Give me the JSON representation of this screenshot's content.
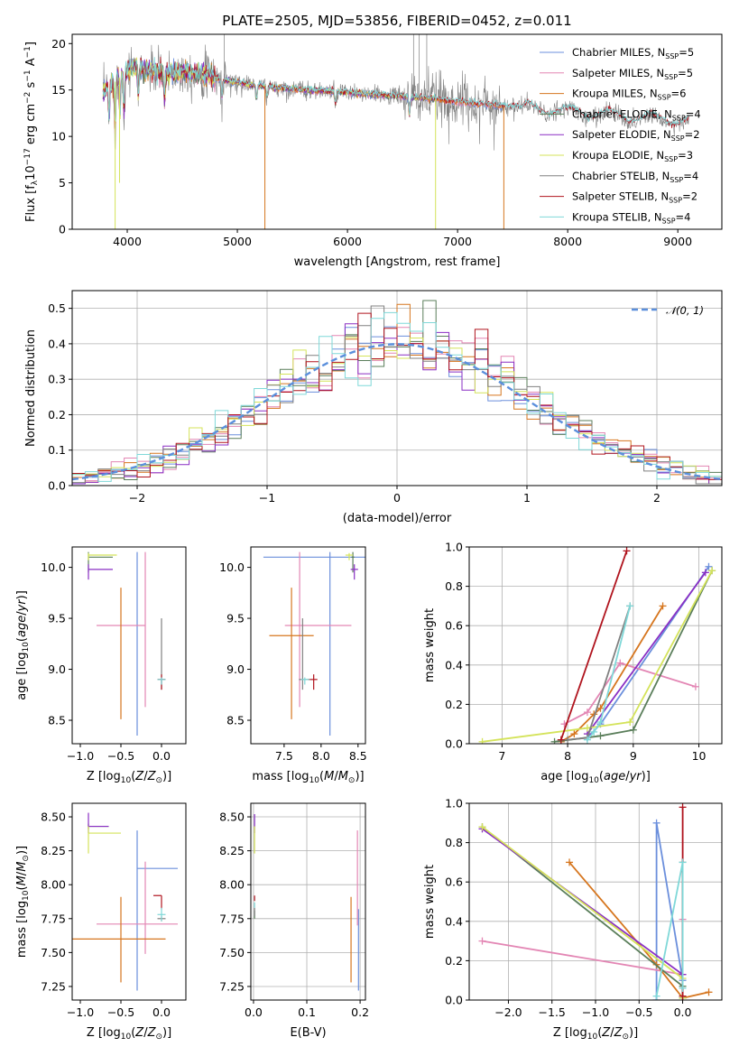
{
  "title": "PLATE=2505, MJD=53856, FIBERID=0452, z=0.011",
  "colors": {
    "Chabrier MILES": "#6b8fdc",
    "Salpeter MILES": "#e386b4",
    "Kroupa MILES": "#d6761f",
    "Chabrier ELODIE": "#5a7e5a",
    "Salpeter ELODIE": "#8a2fc4",
    "Kroupa ELODIE": "#d4e35a",
    "Chabrier STELIB": "#808080",
    "Salpeter STELIB": "#b0141e",
    "Kroupa STELIB": "#7fd8d8"
  },
  "chart_data": [
    {
      "id": "spectrum",
      "type": "line",
      "title": "PLATE=2505, MJD=53856, FIBERID=0452, z=0.011",
      "xlabel": "wavelength [Angstrom, rest frame]",
      "ylabel": "Flux [f_λ 10^-17 erg cm^-2 s^-1 A^-1]",
      "xlim": [
        3500,
        9400
      ],
      "ylim": [
        0,
        21
      ],
      "xticks": [
        4000,
        5000,
        6000,
        7000,
        8000,
        9000
      ],
      "yticks": [
        0,
        5,
        10,
        15,
        20
      ],
      "legend_position": "upper right",
      "legend": [
        "Chabrier MILES, N_SSP=5",
        "Salpeter MILES, N_SSP=5",
        "Kroupa MILES, N_SSP=6",
        "Chabrier ELODIE, N_SSP=4",
        "Salpeter ELODIE, N_SSP=2",
        "Kroupa ELODIE, N_SSP=3",
        "Chabrier STELIB, N_SSP=4",
        "Salpeter STELIB, N_SSP=2",
        "Kroupa STELIB, N_SSP=4"
      ],
      "continuum": {
        "x": [
          3780,
          3850,
          3950,
          4050,
          4150,
          4300,
          4500,
          4700,
          4900,
          5100,
          5300,
          5600,
          5900,
          6200,
          6500,
          6800,
          7100,
          7400,
          7700,
          8000,
          8300,
          8600,
          8900,
          9100
        ],
        "y": [
          14.5,
          15.5,
          16.5,
          17.5,
          17.2,
          16.8,
          17.0,
          16.6,
          16.0,
          15.6,
          15.3,
          15.0,
          14.8,
          14.5,
          14.3,
          14.0,
          13.6,
          13.3,
          13.0,
          12.6,
          12.4,
          12.0,
          11.8,
          11.5
        ]
      }
    },
    {
      "id": "residuals",
      "type": "histogram",
      "xlabel": "(data-model)/error",
      "ylabel": "Normed distribution",
      "xlim": [
        -2.5,
        2.5
      ],
      "ylim": [
        0,
        0.55
      ],
      "xticks": [
        -2,
        -1,
        0,
        1,
        2
      ],
      "yticks": [
        0.0,
        0.1,
        0.2,
        0.3,
        0.4,
        0.5
      ],
      "grid": true,
      "legend": [
        "𝒩(0, 1)"
      ],
      "legend_position": "upper right",
      "bin_width": 0.1
    },
    {
      "id": "age-vs-Z",
      "type": "errorbar",
      "xlabel": "Z [log10(Z/Z⊙)]",
      "ylabel": "age  [log10(age/yr)]",
      "xlim": [
        -1.1,
        0.3
      ],
      "ylim": [
        8.27,
        10.2
      ],
      "xticks": [
        -1.0,
        -0.5,
        0.0
      ],
      "yticks": [
        8.5,
        9.0,
        9.5,
        10.0
      ],
      "points": [
        {
          "model": "Chabrier MILES",
          "x": -0.3,
          "xerr": [
            0.0,
            0.0
          ],
          "y": 10.1,
          "yerr": [
            1.75,
            0.05
          ]
        },
        {
          "model": "Salpeter MILES",
          "x": -0.2,
          "xerr": [
            0.6,
            0.0
          ],
          "y": 9.43,
          "yerr": [
            0.8,
            0.72
          ]
        },
        {
          "model": "Kroupa MILES",
          "x": -0.5,
          "xerr": [
            0.0,
            0.0
          ],
          "y": 9.33,
          "yerr": [
            0.82,
            0.47
          ]
        },
        {
          "model": "Chabrier ELODIE",
          "x": -0.9,
          "xerr": [
            0.0,
            0.3
          ],
          "y": 10.1,
          "yerr": [
            0.15,
            0.05
          ]
        },
        {
          "model": "Salpeter ELODIE",
          "x": -0.9,
          "xerr": [
            0.0,
            0.3
          ],
          "y": 9.98,
          "yerr": [
            0.1,
            0.05
          ]
        },
        {
          "model": "Kroupa ELODIE",
          "x": -0.9,
          "xerr": [
            0.0,
            0.35
          ],
          "y": 10.12,
          "yerr": [
            0.05,
            0.02
          ]
        },
        {
          "model": "Chabrier STELIB",
          "x": 0.0,
          "xerr": [
            0.05,
            0.05
          ],
          "y": 8.9,
          "yerr": [
            0.1,
            0.6
          ]
        },
        {
          "model": "Salpeter STELIB",
          "x": 0.0,
          "xerr": [
            0.05,
            0.05
          ],
          "y": 8.9,
          "yerr": [
            0.1,
            0.05
          ]
        },
        {
          "model": "Kroupa STELIB",
          "x": 0.0,
          "xerr": [
            0.05,
            0.05
          ],
          "y": 8.9,
          "yerr": [
            0.05,
            0.02
          ]
        }
      ]
    },
    {
      "id": "age-vs-mass",
      "type": "errorbar",
      "xlabel": "mass [log10(M/M⊙)]",
      "ylabel": "",
      "xlim": [
        7.05,
        8.6
      ],
      "ylim": [
        8.27,
        10.2
      ],
      "xticks": [
        7.5,
        8.0,
        8.5
      ],
      "yticks": [
        8.5,
        9.0,
        9.5,
        10.0
      ],
      "points": [
        {
          "model": "Chabrier MILES",
          "x": 8.12,
          "xerr": [
            0.9,
            0.8
          ],
          "y": 10.1,
          "yerr": [
            1.75,
            0.05
          ]
        },
        {
          "model": "Salpeter MILES",
          "x": 7.71,
          "xerr": [
            0.2,
            0.7
          ],
          "y": 9.43,
          "yerr": [
            0.8,
            0.72
          ]
        },
        {
          "model": "Kroupa MILES",
          "x": 7.6,
          "xerr": [
            0.3,
            0.3
          ],
          "y": 9.33,
          "yerr": [
            0.82,
            0.47
          ]
        },
        {
          "model": "Chabrier ELODIE",
          "x": 8.43,
          "xerr": [
            0.02,
            0.02
          ],
          "y": 10.1,
          "yerr": [
            0.15,
            0.05
          ]
        },
        {
          "model": "Salpeter ELODIE",
          "x": 8.45,
          "xerr": [
            0.05,
            0.05
          ],
          "y": 9.98,
          "yerr": [
            0.1,
            0.05
          ]
        },
        {
          "model": "Kroupa ELODIE",
          "x": 8.38,
          "xerr": [
            0.05,
            0.05
          ],
          "y": 10.12,
          "yerr": [
            0.05,
            0.02
          ]
        },
        {
          "model": "Chabrier STELIB",
          "x": 7.75,
          "xerr": [
            0.05,
            0.1
          ],
          "y": 8.9,
          "yerr": [
            0.1,
            0.6
          ]
        },
        {
          "model": "Salpeter STELIB",
          "x": 7.9,
          "xerr": [
            0.05,
            0.05
          ],
          "y": 8.9,
          "yerr": [
            0.1,
            0.05
          ]
        },
        {
          "model": "Kroupa STELIB",
          "x": 7.78,
          "xerr": [
            0.05,
            0.05
          ],
          "y": 8.9,
          "yerr": [
            0.05,
            0.02
          ]
        }
      ]
    },
    {
      "id": "weight-vs-age",
      "type": "line",
      "xlabel": "age  [log10(age/yr)]",
      "ylabel": "mass weight",
      "xlim": [
        6.5,
        10.35
      ],
      "ylim": [
        0.0,
        1.0
      ],
      "xticks": [
        7,
        8,
        9,
        10
      ],
      "yticks": [
        0.0,
        0.2,
        0.4,
        0.6,
        0.8,
        1.0
      ],
      "grid": true,
      "series": [
        {
          "model": "Chabrier MILES",
          "x": [
            8.3,
            8.5,
            10.15
          ],
          "y": [
            0.03,
            0.1,
            0.9
          ]
        },
        {
          "model": "Salpeter MILES",
          "x": [
            7.95,
            8.3,
            8.8,
            9.95
          ],
          "y": [
            0.1,
            0.16,
            0.41,
            0.29
          ]
        },
        {
          "model": "Kroupa MILES",
          "x": [
            7.9,
            8.1,
            8.4,
            8.5,
            9.45
          ],
          "y": [
            0.01,
            0.05,
            0.15,
            0.18,
            0.7
          ]
        },
        {
          "model": "Chabrier ELODIE",
          "x": [
            7.8,
            8.5,
            9.0,
            10.2
          ],
          "y": [
            0.01,
            0.04,
            0.07,
            0.88
          ]
        },
        {
          "model": "Salpeter ELODIE",
          "x": [
            8.3,
            10.1
          ],
          "y": [
            0.05,
            0.87
          ]
        },
        {
          "model": "Kroupa ELODIE",
          "x": [
            6.7,
            8.3,
            8.95,
            10.2
          ],
          "y": [
            0.01,
            0.08,
            0.11,
            0.88
          ]
        },
        {
          "model": "Chabrier STELIB",
          "x": [
            8.0,
            8.3,
            8.95
          ],
          "y": [
            0.02,
            0.03,
            0.7
          ]
        },
        {
          "model": "Salpeter STELIB",
          "x": [
            7.9,
            8.9
          ],
          "y": [
            0.02,
            0.98
          ]
        },
        {
          "model": "Kroupa STELIB",
          "x": [
            8.3,
            8.4,
            8.5,
            8.95
          ],
          "y": [
            0.02,
            0.06,
            0.11,
            0.7
          ]
        }
      ]
    },
    {
      "id": "mass-vs-Z",
      "type": "errorbar",
      "xlabel": "Z [log10(Z/Z⊙)]",
      "ylabel": "mass [log10(M/M⊙)]",
      "xlim": [
        -1.1,
        0.3
      ],
      "ylim": [
        7.15,
        8.6
      ],
      "xticks": [
        -1.0,
        -0.5,
        0.0
      ],
      "yticks": [
        7.25,
        7.5,
        7.75,
        8.0,
        8.25,
        8.5
      ],
      "points": [
        {
          "model": "Chabrier MILES",
          "x": -0.3,
          "xerr": [
            0.0,
            0.5
          ],
          "y": 8.12,
          "yerr": [
            0.9,
            0.28
          ]
        },
        {
          "model": "Salpeter MILES",
          "x": -0.2,
          "xerr": [
            0.6,
            0.4
          ],
          "y": 7.71,
          "yerr": [
            0.22,
            0.46
          ]
        },
        {
          "model": "Kroupa MILES",
          "x": -0.5,
          "xerr": [
            0.6,
            0.55
          ],
          "y": 7.6,
          "yerr": [
            0.32,
            0.31
          ]
        },
        {
          "model": "Chabrier ELODIE",
          "x": -0.9,
          "xerr": [
            0.0,
            0.25
          ],
          "y": 8.43,
          "yerr": [
            0.02,
            0.02
          ]
        },
        {
          "model": "Salpeter ELODIE",
          "x": -0.9,
          "xerr": [
            0.0,
            0.25
          ],
          "y": 8.43,
          "yerr": [
            0.05,
            0.1
          ]
        },
        {
          "model": "Kroupa ELODIE",
          "x": -0.9,
          "xerr": [
            0.0,
            0.4
          ],
          "y": 8.38,
          "yerr": [
            0.15,
            0.05
          ]
        },
        {
          "model": "Chabrier STELIB",
          "x": 0.0,
          "xerr": [
            0.05,
            0.05
          ],
          "y": 7.75,
          "yerr": [
            0.02,
            0.02
          ]
        },
        {
          "model": "Salpeter STELIB",
          "x": 0.0,
          "xerr": [
            0.1,
            0.0
          ],
          "y": 7.92,
          "yerr": [
            0.1,
            0.0
          ]
        },
        {
          "model": "Kroupa STELIB",
          "x": 0.0,
          "xerr": [
            0.05,
            0.05
          ],
          "y": 7.78,
          "yerr": [
            0.05,
            0.05
          ]
        }
      ]
    },
    {
      "id": "mass-vs-ebv",
      "type": "errorbar",
      "xlabel": "E(B-V)",
      "ylabel": "",
      "xlim": [
        -0.005,
        0.21
      ],
      "ylim": [
        7.15,
        8.6
      ],
      "xticks": [
        0.0,
        0.1,
        0.2
      ],
      "yticks": [
        7.25,
        7.5,
        7.75,
        8.0,
        8.25,
        8.5
      ],
      "grid": true,
      "points": [
        {
          "model": "Chabrier MILES",
          "x": 0.197,
          "xerr": [
            0.0,
            0.0
          ],
          "y": 7.72,
          "yerr": [
            0.5,
            0.1
          ]
        },
        {
          "model": "Salpeter MILES",
          "x": 0.195,
          "xerr": [
            0.0,
            0.0
          ],
          "y": 7.9,
          "yerr": [
            0.2,
            0.5
          ]
        },
        {
          "model": "Kroupa MILES",
          "x": 0.183,
          "xerr": [
            0.0,
            0.0
          ],
          "y": 7.6,
          "yerr": [
            0.32,
            0.31
          ]
        },
        {
          "model": "Chabrier ELODIE",
          "x": 0.002,
          "xerr": [
            0.0,
            0.0
          ],
          "y": 7.78,
          "yerr": [
            0.03,
            0.03
          ]
        },
        {
          "model": "Salpeter ELODIE",
          "x": 0.002,
          "xerr": [
            0.0,
            0.0
          ],
          "y": 8.43,
          "yerr": [
            0.05,
            0.09
          ]
        },
        {
          "model": "Kroupa ELODIE",
          "x": 0.002,
          "xerr": [
            0.0,
            0.0
          ],
          "y": 8.38,
          "yerr": [
            0.15,
            0.05
          ]
        },
        {
          "model": "Chabrier STELIB",
          "x": 0.002,
          "xerr": [
            0.0,
            0.0
          ],
          "y": 7.8,
          "yerr": [
            0.03,
            0.03
          ]
        },
        {
          "model": "Salpeter STELIB",
          "x": 0.002,
          "xerr": [
            0.0,
            0.0
          ],
          "y": 7.9,
          "yerr": [
            0.02,
            0.02
          ]
        },
        {
          "model": "Kroupa STELIB",
          "x": 0.002,
          "xerr": [
            0.0,
            0.0
          ],
          "y": 7.85,
          "yerr": [
            0.02,
            0.02
          ]
        }
      ]
    },
    {
      "id": "weight-vs-Z",
      "type": "line",
      "xlabel": "Z [log10(Z/Z⊙)]",
      "ylabel": "mass weight",
      "xlim": [
        -2.45,
        0.45
      ],
      "ylim": [
        0.0,
        1.0
      ],
      "xticks": [
        -2.0,
        -1.5,
        -1.0,
        -0.5,
        0.0
      ],
      "yticks": [
        0.0,
        0.2,
        0.4,
        0.6,
        0.8,
        1.0
      ],
      "grid": true,
      "series": [
        {
          "model": "Chabrier MILES",
          "x": [
            -0.3,
            -0.3,
            0.0
          ],
          "y": [
            0.0,
            0.9,
            0.1
          ]
        },
        {
          "model": "Salpeter MILES",
          "x": [
            -2.3,
            0.0,
            0.0
          ],
          "y": [
            0.3,
            0.13,
            0.41
          ]
        },
        {
          "model": "Kroupa MILES",
          "x": [
            -1.3,
            -0.3,
            0.0,
            0.3
          ],
          "y": [
            0.7,
            0.18,
            0.01,
            0.04
          ]
        },
        {
          "model": "Chabrier ELODIE",
          "x": [
            -2.3,
            0.0,
            0.0
          ],
          "y": [
            0.88,
            0.07,
            0.01
          ]
        },
        {
          "model": "Salpeter ELODIE",
          "x": [
            -2.3,
            0.0
          ],
          "y": [
            0.87,
            0.13
          ]
        },
        {
          "model": "Kroupa ELODIE",
          "x": [
            -2.3,
            0.0,
            0.0
          ],
          "y": [
            0.88,
            0.11,
            0.01
          ]
        },
        {
          "model": "Chabrier STELIB",
          "x": [
            0.0,
            0.0
          ],
          "y": [
            0.02,
            0.7
          ]
        },
        {
          "model": "Salpeter STELIB",
          "x": [
            0.0,
            0.0
          ],
          "y": [
            0.02,
            0.98
          ]
        },
        {
          "model": "Kroupa STELIB",
          "x": [
            -0.3,
            0.0,
            0.0
          ],
          "y": [
            0.02,
            0.7,
            0.06
          ]
        }
      ]
    }
  ]
}
